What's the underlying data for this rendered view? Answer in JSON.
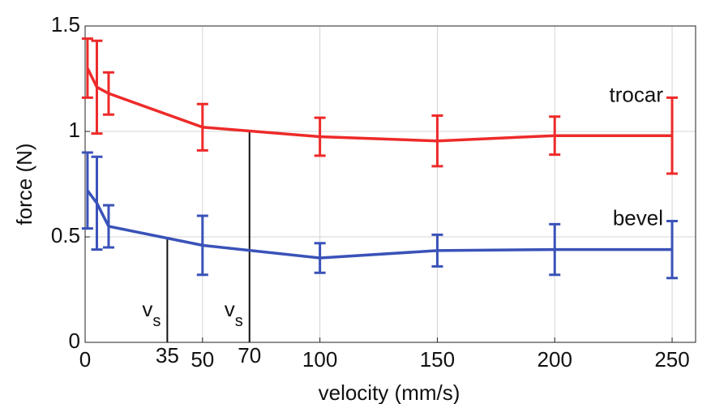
{
  "chart_data": {
    "type": "line",
    "x_label": "velocity (mm/s)",
    "y_label": "force (N)",
    "xlim": [
      0,
      260
    ],
    "ylim": [
      0,
      1.5
    ],
    "xticks": [
      0,
      50,
      100,
      150,
      200,
      250
    ],
    "yticks": [
      0,
      0.5,
      1,
      1.5
    ],
    "grid": true,
    "series": [
      {
        "name": "trocar",
        "color": "#ee2a2a",
        "x": [
          1,
          5,
          10,
          50,
          100,
          150,
          200,
          250
        ],
        "values": [
          1.3,
          1.21,
          1.18,
          1.02,
          0.975,
          0.955,
          0.98,
          0.98
        ],
        "errors": [
          0.14,
          0.22,
          0.1,
          0.11,
          0.09,
          0.12,
          0.09,
          0.18
        ]
      },
      {
        "name": "bevel",
        "color": "#3a52b8",
        "x": [
          1,
          5,
          10,
          50,
          100,
          150,
          200,
          250
        ],
        "values": [
          0.72,
          0.66,
          0.55,
          0.46,
          0.4,
          0.435,
          0.44,
          0.44
        ],
        "errors": [
          0.18,
          0.22,
          0.1,
          0.14,
          0.07,
          0.075,
          0.12,
          0.135
        ]
      }
    ],
    "markers": [
      {
        "x": 35,
        "y": 0.5,
        "text": "v",
        "sub": "s"
      },
      {
        "x": 70,
        "y": 1,
        "text": "v",
        "sub": "s"
      }
    ]
  }
}
